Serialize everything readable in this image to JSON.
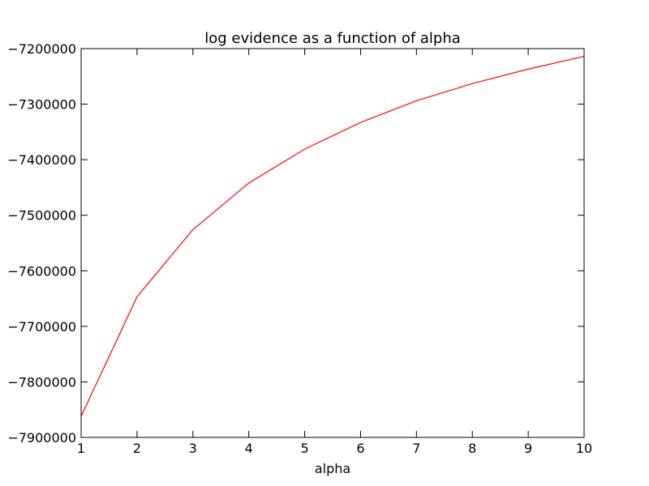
{
  "chart_data": {
    "type": "line",
    "title": "log evidence as a function of alpha",
    "xlabel": "alpha",
    "ylabel": "",
    "x": [
      1,
      2,
      3,
      4,
      5,
      6,
      7,
      8,
      9,
      10
    ],
    "series": [
      {
        "color": "#ff0000",
        "values": [
          -7862000,
          -7647000,
          -7526000,
          -7442000,
          -7381000,
          -7333000,
          -7294000,
          -7263000,
          -7237000,
          -7214000
        ]
      }
    ],
    "xlim": [
      1,
      10
    ],
    "ylim": [
      -7900000,
      -7200000
    ],
    "xticks": [
      1,
      2,
      3,
      4,
      5,
      6,
      7,
      8,
      9,
      10
    ],
    "xtick_labels": [
      "1",
      "2",
      "3",
      "4",
      "5",
      "6",
      "7",
      "8",
      "9",
      "10"
    ],
    "yticks": [
      -7900000,
      -7800000,
      -7700000,
      -7600000,
      -7500000,
      -7400000,
      -7300000,
      -7200000
    ],
    "ytick_labels": [
      "−7900000",
      "−7800000",
      "−7700000",
      "−7600000",
      "−7500000",
      "−7400000",
      "−7300000",
      "−7200000"
    ],
    "grid": false,
    "legend": false
  }
}
